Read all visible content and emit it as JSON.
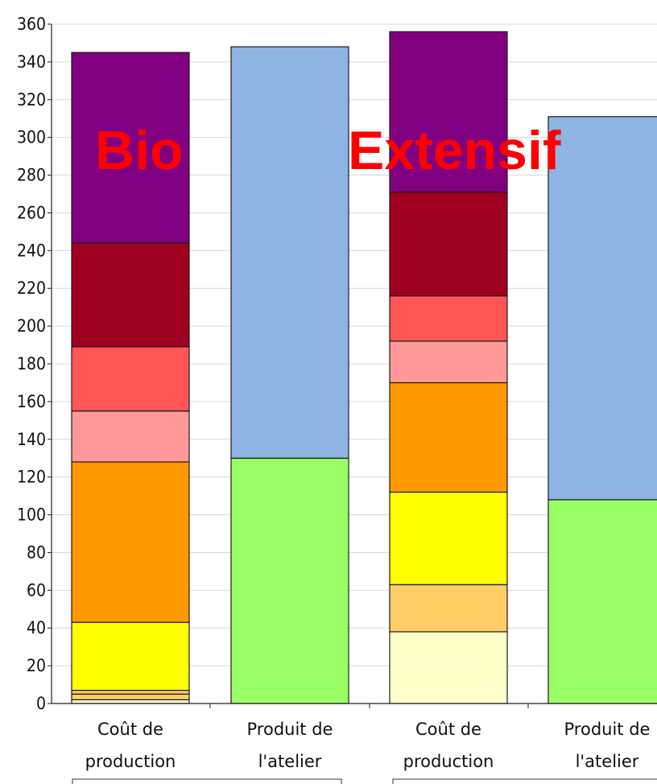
{
  "chart_data": {
    "type": "bar",
    "stacked": true,
    "ylim": [
      0,
      360
    ],
    "yticks": [
      0,
      20,
      40,
      60,
      80,
      100,
      120,
      140,
      160,
      180,
      200,
      220,
      240,
      260,
      280,
      300,
      320,
      340,
      360
    ],
    "grid": true,
    "annotations": [
      "Bio",
      "Extensif"
    ],
    "categories": [
      {
        "line1": "Coût de",
        "line2": "production"
      },
      {
        "line1": "Produit de",
        "line2": "l'atelier"
      },
      {
        "line1": "Coût de",
        "line2": "production"
      },
      {
        "line1": "Produit de",
        "line2": "l'atelier"
      }
    ],
    "bars": [
      {
        "segments": [
          {
            "value": 2,
            "color": "#ffffcc"
          },
          {
            "value": 3,
            "color": "#ffcc66"
          },
          {
            "value": 2,
            "color": "#ffcc66"
          },
          {
            "value": 36,
            "color": "#ffff00"
          },
          {
            "value": 85,
            "color": "#ff9900"
          },
          {
            "value": 27,
            "color": "#ff9999"
          },
          {
            "value": 34,
            "color": "#ff5555"
          },
          {
            "value": 55,
            "color": "#a00020"
          },
          {
            "value": 101,
            "color": "#800080"
          }
        ]
      },
      {
        "segments": [
          {
            "value": 130,
            "color": "#99ff66"
          },
          {
            "value": 218,
            "color": "#8eb4e3"
          }
        ]
      },
      {
        "segments": [
          {
            "value": 38,
            "color": "#ffffcc"
          },
          {
            "value": 25,
            "color": "#ffcc66"
          },
          {
            "value": 49,
            "color": "#ffff00"
          },
          {
            "value": 58,
            "color": "#ff9900"
          },
          {
            "value": 22,
            "color": "#ff9999"
          },
          {
            "value": 24,
            "color": "#ff5555"
          },
          {
            "value": 55,
            "color": "#a00020"
          },
          {
            "value": 85,
            "color": "#800080"
          }
        ]
      },
      {
        "segments": [
          {
            "value": 108,
            "color": "#99ff66"
          },
          {
            "value": 203,
            "color": "#8eb4e3"
          }
        ]
      }
    ]
  }
}
